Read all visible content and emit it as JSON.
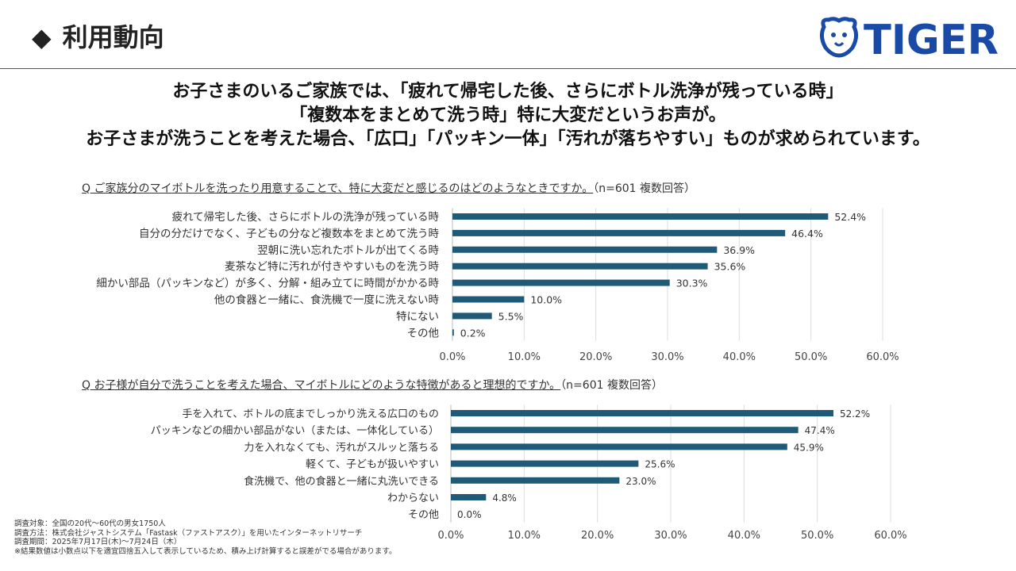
{
  "header": {
    "title": "利用動向",
    "title_icon": "diamond-icon"
  },
  "logo": {
    "text": "TIGER",
    "color": "#1a4aa8"
  },
  "headline": [
    "お子さまのいるご家族では、「疲れて帰宅した後、さらにボトル洗浄が残っている時」",
    "「複数本をまとめて洗う時」特に大変だというお声が。",
    "お子さまが洗うことを考えた場合、「広口」「パッキン一体」「汚れが落ちやすい」ものが求められています。"
  ],
  "chart_data": [
    {
      "type": "bar",
      "orientation": "horizontal",
      "title": "Q ご家族分のマイボトルを洗ったり用意することで、特に大変だと感じるのはどのようなときですか。",
      "subtitle": "（n=601 複数回答）",
      "categories": [
        "疲れて帰宅した後、さらにボトルの洗浄が残っている時",
        "自分の分だけでなく、子どもの分など複数本をまとめて洗う時",
        "翌朝に洗い忘れたボトルが出てくる時",
        "麦茶など特に汚れが付きやすいものを洗う時",
        "細かい部品（パッキンなど）が多く、分解・組み立てに時間がかかる時",
        "他の食器と一緒に、食洗機で一度に洗えない時",
        "特にない",
        "その他"
      ],
      "values": [
        52.4,
        46.4,
        36.9,
        35.6,
        30.3,
        10.0,
        5.5,
        0.2
      ],
      "value_labels": [
        "52.4%",
        "46.4%",
        "36.9%",
        "35.6%",
        "30.3%",
        "10.0%",
        "5.5%",
        "0.2%"
      ],
      "xlim": [
        0,
        60
      ],
      "xticks": [
        "0.0%",
        "10.0%",
        "20.0%",
        "30.0%",
        "40.0%",
        "50.0%",
        "60.0%"
      ],
      "grid": true,
      "color": "#1f5a78"
    },
    {
      "type": "bar",
      "orientation": "horizontal",
      "title": "Q お子様が自分で洗うことを考えた場合、マイボトルにどのような特徴があると理想的ですか。",
      "subtitle": "（n=601 複数回答）",
      "categories": [
        "手を入れて、ボトルの底までしっかり洗える広口のもの",
        "パッキンなどの細かい部品がない（または、一体化している）",
        "力を入れなくても、汚れがスルッと落ちる",
        "軽くて、子どもが扱いやすい",
        "食洗機で、他の食器と一緒に丸洗いできる",
        "わからない",
        "その他"
      ],
      "values": [
        52.2,
        47.4,
        45.9,
        25.6,
        23.0,
        4.8,
        0.0
      ],
      "value_labels": [
        "52.2%",
        "47.4%",
        "45.9%",
        "25.6%",
        "23.0%",
        "4.8%",
        "0.0%"
      ],
      "xlim": [
        0,
        60
      ],
      "xticks": [
        "0.0%",
        "10.0%",
        "20.0%",
        "30.0%",
        "40.0%",
        "50.0%",
        "60.0%"
      ],
      "grid": true,
      "color": "#1f5a78"
    }
  ],
  "footnotes": [
    "調査対象：全国の20代～60代の男女1750人",
    "調査方法：株式会社ジャストシステム「Fastask（ファストアスク）」を用いたインターネットリサーチ",
    "調査期間：2025年7月17日(木)～7月24日（木）",
    "※結果数値は小数点以下を適宜四捨五入して表示しているため、積み上げ計算すると誤差がでる場合があります。"
  ]
}
